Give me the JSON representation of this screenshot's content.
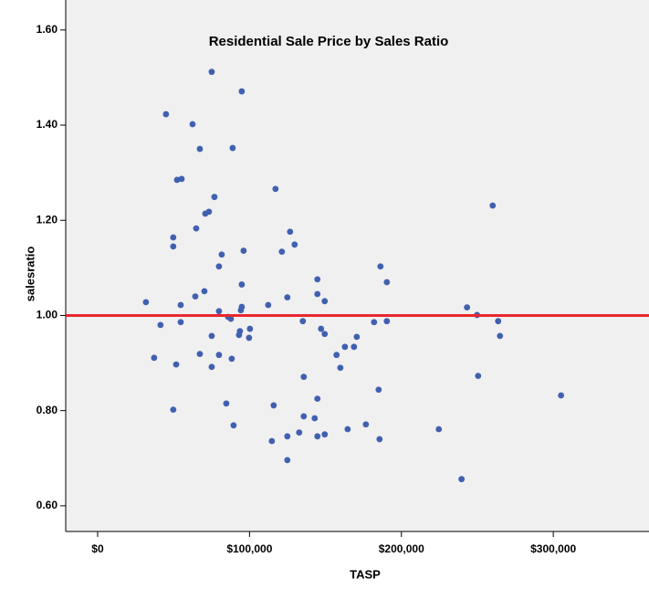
{
  "chart_data": {
    "type": "scatter",
    "title": "Residential Sale Price by Sales Ratio",
    "x_label": "TASP",
    "y_label": "salesratio",
    "color": "#4060b0",
    "reference_line": {
      "value": 1.0,
      "color": "#e8282f"
    },
    "xlim": [
      -21000,
      363000
    ],
    "ylim": [
      0.546,
      1.663
    ],
    "xticks": [
      {
        "value": 0,
        "label": "$0"
      },
      {
        "value": 100000,
        "label": "$100,000"
      },
      {
        "value": 200000,
        "label": "$200,000"
      },
      {
        "value": 300000,
        "label": "$300,000"
      }
    ],
    "yticks": [
      {
        "value": 0.6,
        "label": "0.60"
      },
      {
        "value": 0.8,
        "label": "0.80"
      },
      {
        "value": 1.0,
        "label": "1.00"
      },
      {
        "value": 1.2,
        "label": "1.20"
      },
      {
        "value": 1.4,
        "label": "1.40"
      },
      {
        "value": 1.6,
        "label": "1.60"
      }
    ],
    "x": [
      31800,
      37200,
      41400,
      45000,
      49800,
      49800,
      49800,
      52300,
      55300,
      51700,
      54700,
      54700,
      62500,
      64300,
      64900,
      67300,
      67300,
      70300,
      70900,
      73300,
      75100,
      75100,
      75100,
      76900,
      79900,
      79900,
      79900,
      81700,
      84700,
      85900,
      87700,
      88300,
      88900,
      89500,
      93100,
      93700,
      94300,
      94900,
      94900,
      94900,
      96100,
      99700,
      100300,
      112300,
      114700,
      115900,
      117100,
      121300,
      124900,
      124900,
      124900,
      126700,
      129700,
      132700,
      135100,
      135700,
      135700,
      142900,
      144700,
      144700,
      144700,
      144700,
      147100,
      149500,
      149500,
      149500,
      157300,
      159800,
      162800,
      164600,
      168800,
      170600,
      176600,
      182000,
      185000,
      185600,
      186200,
      190400,
      190400,
      224600,
      239600,
      243200,
      249800,
      250500,
      260100,
      263700,
      264900,
      305100
    ],
    "values": [
      1.028,
      0.911,
      0.98,
      1.423,
      1.164,
      1.145,
      0.802,
      1.285,
      1.287,
      0.897,
      1.022,
      0.986,
      1.402,
      1.04,
      1.183,
      1.35,
      0.919,
      1.051,
      1.214,
      1.218,
      1.512,
      0.957,
      0.892,
      1.249,
      1.103,
      1.009,
      0.917,
      1.128,
      0.815,
      0.997,
      0.993,
      0.909,
      1.352,
      0.769,
      0.959,
      0.967,
      1.011,
      1.065,
      1.018,
      1.471,
      1.136,
      0.953,
      0.972,
      1.022,
      0.736,
      0.811,
      1.266,
      1.134,
      0.746,
      1.038,
      0.696,
      1.176,
      1.149,
      0.754,
      0.988,
      0.871,
      0.788,
      0.784,
      1.076,
      1.045,
      0.825,
      0.746,
      0.972,
      1.03,
      0.961,
      0.75,
      0.917,
      0.89,
      0.934,
      0.761,
      0.934,
      0.955,
      0.771,
      0.986,
      0.844,
      0.74,
      1.103,
      0.988,
      1.07,
      0.761,
      0.656,
      1.017,
      1.001,
      0.873,
      1.231,
      0.988,
      0.957,
      0.832
    ]
  }
}
